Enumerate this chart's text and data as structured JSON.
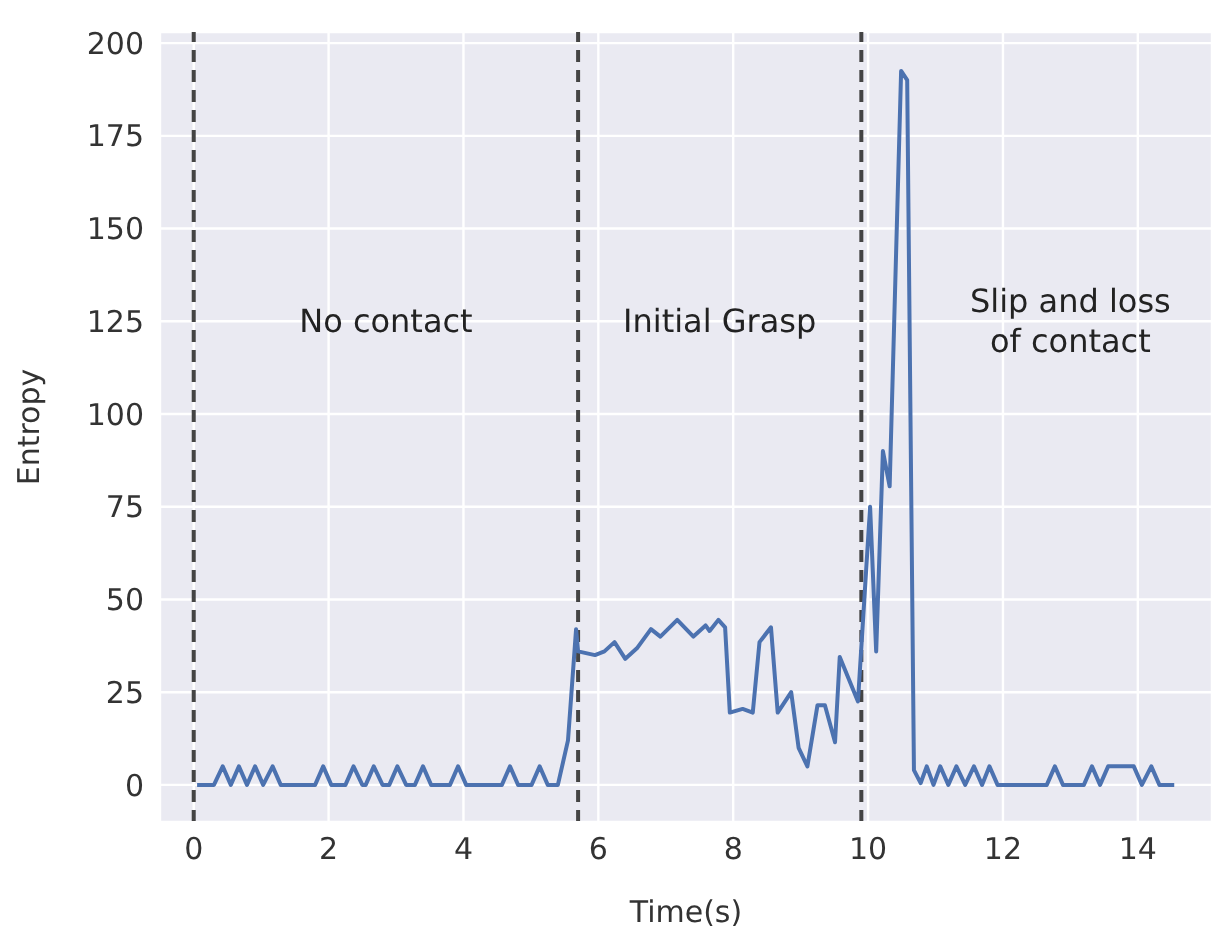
{
  "chart_data": {
    "type": "line",
    "xlabel": "Time(s)",
    "ylabel": "Entropy",
    "xlim": [
      -0.5,
      15.1
    ],
    "ylim": [
      -10,
      203
    ],
    "xticks": [
      0,
      2,
      4,
      6,
      8,
      10,
      12,
      14
    ],
    "yticks": [
      0,
      25,
      50,
      75,
      100,
      125,
      150,
      175,
      200
    ],
    "grid": true,
    "legend": false,
    "marker": "none",
    "line_style": "solid",
    "ref_lines": [
      {
        "axis": "x",
        "value": 0,
        "color": "#444444",
        "line_style": "dashed"
      },
      {
        "axis": "x",
        "value": 5.7,
        "color": "#444444",
        "line_style": "dashed"
      },
      {
        "axis": "x",
        "value": 9.9,
        "color": "#444444",
        "line_style": "dashed"
      }
    ],
    "annotations": [
      "No contact",
      "Initial Grasp",
      "Slip and loss\nof contact"
    ],
    "series": [
      {
        "color": "#4c72b0",
        "x": [
          0.05,
          0.3,
          0.43,
          0.55,
          0.67,
          0.79,
          0.91,
          1.03,
          1.17,
          1.29,
          1.8,
          1.92,
          2.04,
          2.25,
          2.37,
          2.5,
          2.55,
          2.67,
          2.8,
          2.9,
          3.02,
          3.15,
          3.28,
          3.4,
          3.52,
          3.8,
          3.92,
          4.04,
          4.57,
          4.69,
          4.81,
          5.01,
          5.13,
          5.25,
          5.4,
          5.55,
          5.67,
          5.7,
          5.95,
          6.09,
          6.24,
          6.4,
          6.58,
          6.78,
          6.92,
          7.17,
          7.41,
          7.59,
          7.65,
          7.78,
          7.88,
          7.95,
          8.14,
          8.29,
          8.39,
          8.56,
          8.66,
          8.86,
          8.97,
          9.1,
          9.25,
          9.36,
          9.51,
          9.58,
          9.85,
          10.03,
          10.12,
          10.22,
          10.32,
          10.49,
          10.58,
          10.68,
          10.78,
          10.87,
          10.97,
          11.07,
          11.19,
          11.31,
          11.44,
          11.57,
          11.69,
          11.8,
          11.92,
          12.65,
          12.77,
          12.89,
          13.2,
          13.32,
          13.44,
          13.56,
          13.94,
          14.06,
          14.2,
          14.32,
          14.54
        ],
        "values": [
          0,
          0,
          5,
          0,
          5,
          0,
          5,
          0,
          5,
          0,
          0,
          5,
          0,
          0,
          5,
          0,
          0,
          5,
          0,
          0,
          5,
          0,
          0,
          5,
          0,
          0,
          5,
          0,
          0,
          5,
          0,
          0,
          5,
          0,
          0,
          12,
          42,
          36,
          35,
          36,
          38.5,
          34,
          37,
          42,
          40,
          44.5,
          40,
          43,
          41.5,
          44.5,
          42.5,
          19.5,
          20.5,
          19.5,
          38.5,
          42.5,
          19.5,
          25,
          10,
          5,
          21.5,
          21.5,
          11.5,
          34.5,
          22.5,
          75,
          36,
          90,
          80.5,
          192.5,
          190,
          4,
          0.5,
          5,
          0,
          5,
          0,
          5,
          0,
          5,
          0,
          5,
          0,
          0,
          5,
          0,
          0,
          5,
          0,
          5,
          5,
          0,
          5,
          0,
          0
        ]
      }
    ]
  }
}
